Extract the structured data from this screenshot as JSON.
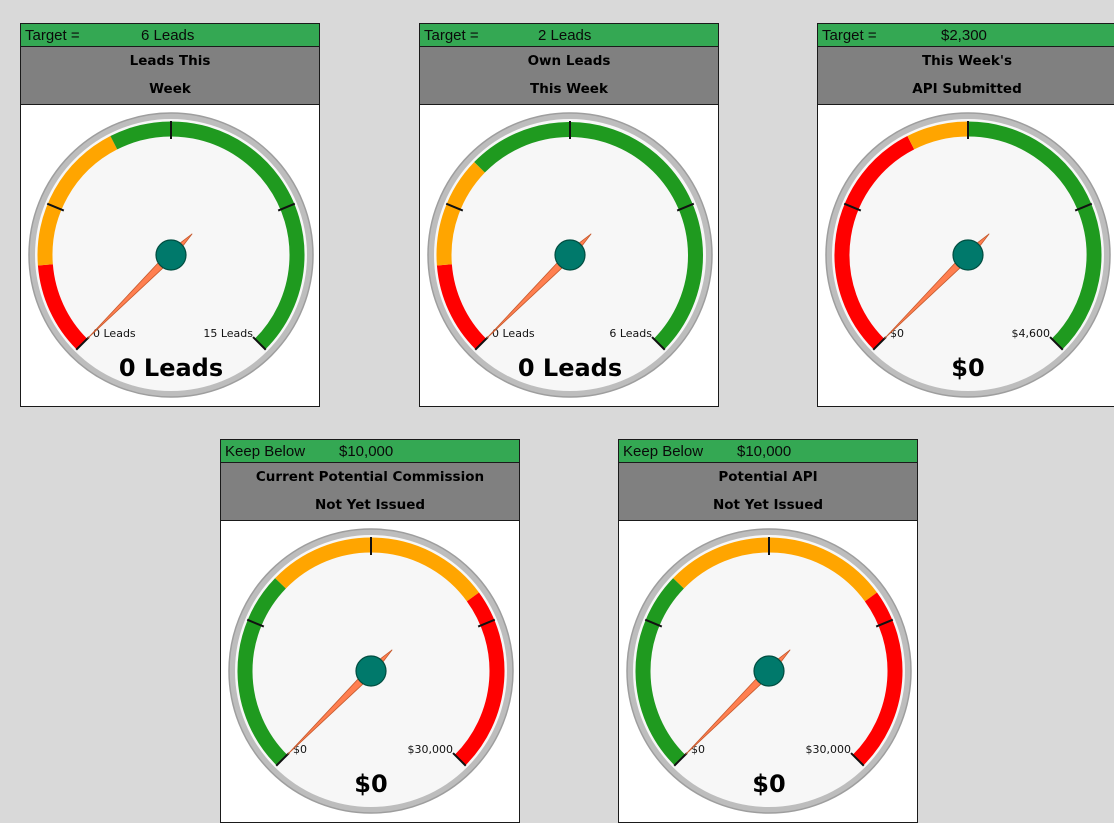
{
  "gauges": [
    {
      "header_label": "Target =",
      "header_value": "6 Leads",
      "title_line1": "Leads This",
      "title_line2": "Week",
      "min_label": "0 Leads",
      "max_label": "15 Leads",
      "value_text": "0 Leads",
      "min": 0,
      "max": 15,
      "value": 0,
      "bands": [
        {
          "color": "red",
          "from": 0,
          "to": 0.15
        },
        {
          "color": "orange",
          "from": 0.15,
          "to": 0.4
        },
        {
          "color": "green",
          "from": 0.4,
          "to": 1.0
        }
      ]
    },
    {
      "header_label": "Target =",
      "header_value": "2 Leads",
      "title_line1": "Own Leads",
      "title_line2": "This Week",
      "min_label": "0 Leads",
      "max_label": "6 Leads",
      "value_text": "0 Leads",
      "min": 0,
      "max": 6,
      "value": 0,
      "bands": [
        {
          "color": "red",
          "from": 0,
          "to": 0.15
        },
        {
          "color": "orange",
          "from": 0.15,
          "to": 0.33
        },
        {
          "color": "green",
          "from": 0.33,
          "to": 1.0
        }
      ]
    },
    {
      "header_label": "Target =",
      "header_value": "$2,300",
      "title_line1": "This Week's",
      "title_line2": "API Submitted",
      "min_label": "$0",
      "max_label": "$4,600",
      "value_text": "$0",
      "min": 0,
      "max": 4600,
      "value": 0,
      "bands": [
        {
          "color": "red",
          "from": 0,
          "to": 0.4
        },
        {
          "color": "orange",
          "from": 0.4,
          "to": 0.5
        },
        {
          "color": "green",
          "from": 0.5,
          "to": 1.0
        }
      ]
    },
    {
      "header_label": "Keep Below",
      "header_value": "$10,000",
      "title_line1": "Current Potential Commission",
      "title_line2": "Not Yet Issued",
      "min_label": "$0",
      "max_label": "$30,000",
      "value_text": "$0",
      "min": 0,
      "max": 30000,
      "value": 0,
      "bands": [
        {
          "color": "green",
          "from": 0,
          "to": 0.33
        },
        {
          "color": "orange",
          "from": 0.33,
          "to": 0.7
        },
        {
          "color": "red",
          "from": 0.7,
          "to": 1.0
        }
      ]
    },
    {
      "header_label": "Keep Below",
      "header_value": "$10,000",
      "title_line1": "Potential API",
      "title_line2": "Not Yet Issued",
      "min_label": "$0",
      "max_label": "$30,000",
      "value_text": "$0",
      "min": 0,
      "max": 30000,
      "value": 0,
      "bands": [
        {
          "color": "green",
          "from": 0,
          "to": 0.33
        },
        {
          "color": "orange",
          "from": 0.33,
          "to": 0.7
        },
        {
          "color": "red",
          "from": 0.7,
          "to": 1.0
        }
      ]
    }
  ],
  "colors": {
    "header_bg": "#34a853",
    "title_bg": "#808080",
    "page_bg": "#d9d9d9",
    "red": "#ff0000",
    "orange": "#ffa500",
    "green": "#1f9a1f",
    "needle": "#ff7f50",
    "hub": "#00796b",
    "rim": "#bdbdbd",
    "face": "#f7f7f7"
  }
}
